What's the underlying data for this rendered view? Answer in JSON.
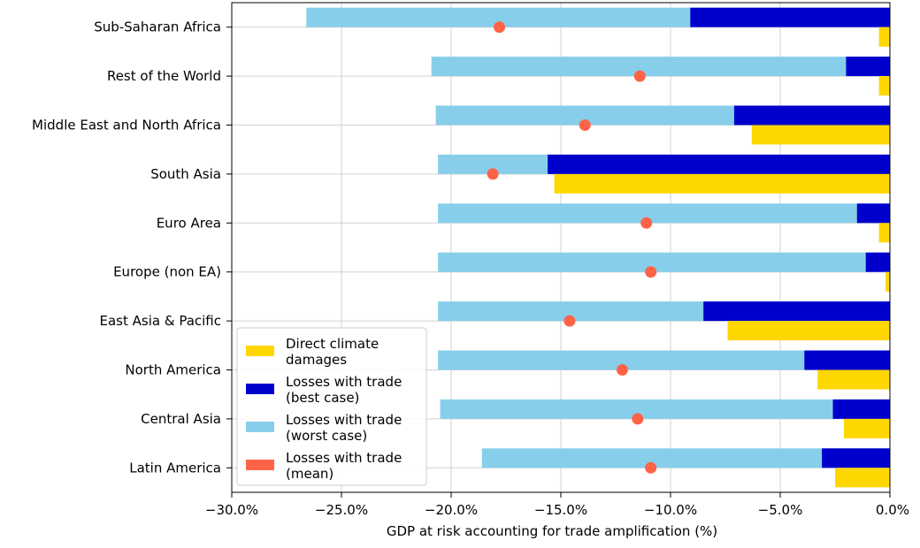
{
  "chart_data": {
    "type": "bar",
    "orientation": "horizontal",
    "xlabel": "GDP at risk accounting for trade amplification  (%)",
    "ylabel": "",
    "xlim": [
      -30,
      0
    ],
    "xticks": [
      -30,
      -25,
      -20,
      -15,
      -10,
      -5,
      0
    ],
    "xtick_labels": [
      "−30.0%",
      "−25.0%",
      "−20.0%",
      "−15.0%",
      "−10.0%",
      "−5.0%",
      "0.0%"
    ],
    "grid": "x",
    "legend_position": "lower-left",
    "categories": [
      "Sub-Saharan Africa",
      "Rest of the World",
      "Middle East and North Africa",
      "South Asia",
      "Euro Area",
      "Europe (non EA)",
      "East Asia & Pacific",
      "North America",
      "Central Asia",
      "Latin America"
    ],
    "series": [
      {
        "name": "Direct climate damages",
        "color": "#FFD700",
        "values": [
          -0.5,
          -0.5,
          -6.3,
          -15.3,
          -0.5,
          -0.2,
          -7.4,
          -3.3,
          -2.1,
          -2.5
        ]
      },
      {
        "name": "Losses with trade (best case)",
        "color": "#0000CD",
        "values": [
          -9.1,
          -2.0,
          -7.1,
          -15.6,
          -1.5,
          -1.1,
          -8.5,
          -3.9,
          -2.6,
          -3.1
        ]
      },
      {
        "name": "Losses with trade (worst case)",
        "color": "#87CEEB",
        "values": [
          -26.6,
          -20.9,
          -20.7,
          -20.6,
          -20.6,
          -20.6,
          -20.6,
          -20.6,
          -20.5,
          -18.6
        ]
      },
      {
        "name": "Losses with trade (mean)",
        "color": "#FF6347",
        "values": [
          -17.8,
          -11.4,
          -13.9,
          -18.1,
          -11.1,
          -10.9,
          -14.6,
          -12.2,
          -11.5,
          -10.9
        ]
      }
    ],
    "legend": [
      {
        "key": "direct",
        "lines": [
          "Direct climate",
          "damages"
        ],
        "color": "#FFD700"
      },
      {
        "key": "best",
        "lines": [
          "Losses with trade",
          "(best case)"
        ],
        "color": "#0000CD"
      },
      {
        "key": "worst",
        "lines": [
          "Losses with trade",
          "(worst case)"
        ],
        "color": "#87CEEB"
      },
      {
        "key": "mean",
        "lines": [
          "Losses with trade",
          "(mean)"
        ],
        "color": "#FF6347"
      }
    ]
  }
}
